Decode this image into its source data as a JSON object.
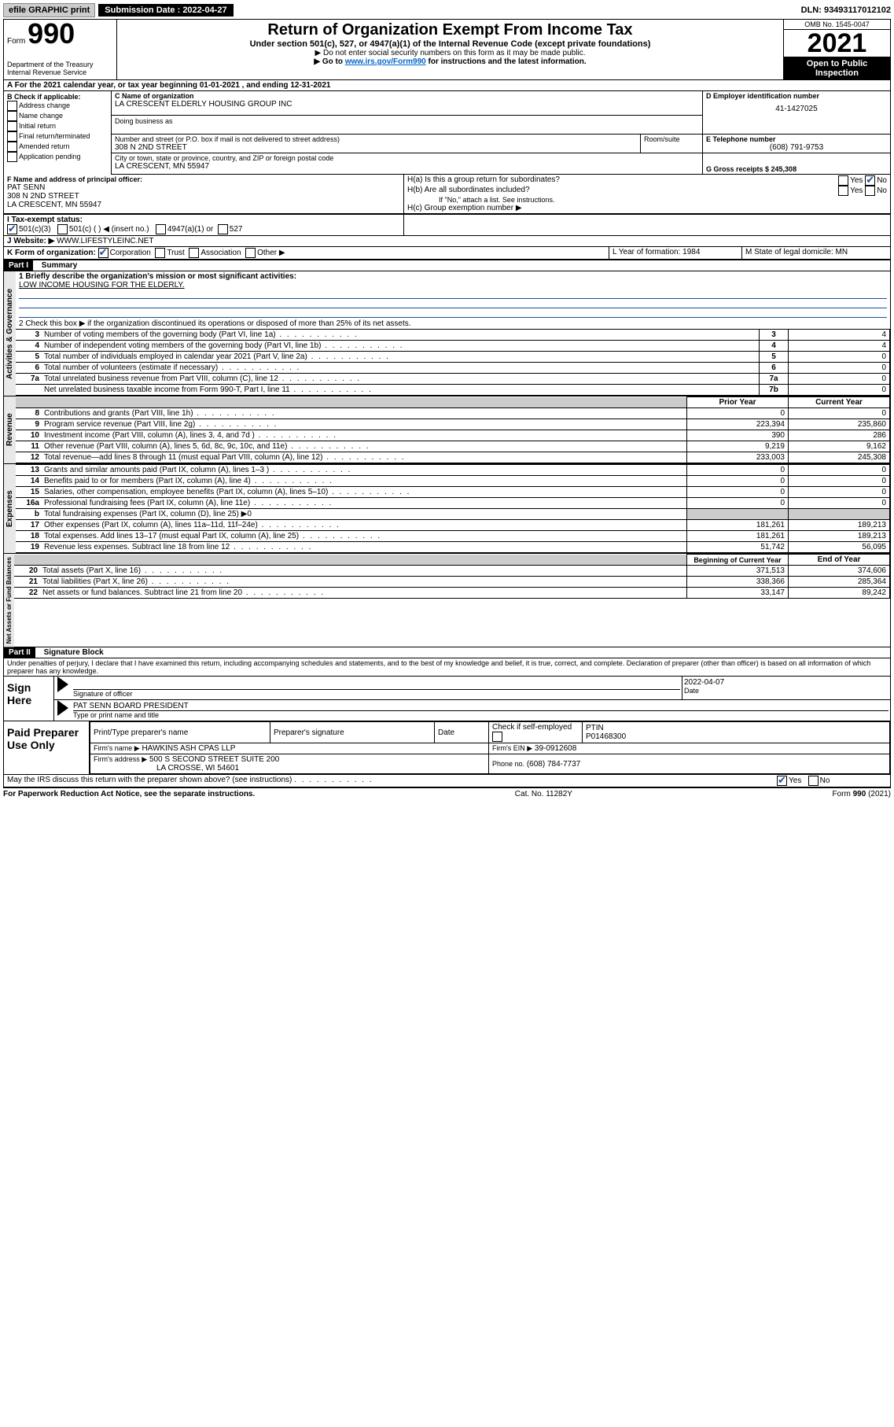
{
  "topbar": {
    "efile": "efile GRAPHIC print",
    "sub_label": "Submission Date : 2022-04-27",
    "dln": "DLN: 93493117012102"
  },
  "header": {
    "form_word": "Form",
    "form_num": "990",
    "dept1": "Department of the Treasury",
    "dept2": "Internal Revenue Service",
    "title": "Return of Organization Exempt From Income Tax",
    "sub": "Under section 501(c), 527, or 4947(a)(1) of the Internal Revenue Code (except private foundations)",
    "note1": "▶ Do not enter social security numbers on this form as it may be made public.",
    "note2a": "▶ Go to ",
    "note2_link": "www.irs.gov/Form990",
    "note2b": " for instructions and the latest information.",
    "omb": "OMB No. 1545-0047",
    "year": "2021",
    "open1": "Open to Public",
    "open2": "Inspection"
  },
  "period": {
    "a_line": "A For the 2021 calendar year, or tax year beginning 01-01-2021   , and ending 12-31-2021"
  },
  "boxB": {
    "label": "B Check if applicable:",
    "opts": [
      "Address change",
      "Name change",
      "Initial return",
      "Final return/terminated",
      "Amended return",
      "Application pending"
    ]
  },
  "boxC": {
    "name_lbl": "C Name of organization",
    "name": "LA CRESCENT ELDERLY HOUSING GROUP INC",
    "dba_lbl": "Doing business as",
    "addr_lbl": "Number and street (or P.O. box if mail is not delivered to street address)",
    "room_lbl": "Room/suite",
    "addr": "308 N 2ND STREET",
    "city_lbl": "City or town, state or province, country, and ZIP or foreign postal code",
    "city": "LA CRESCENT, MN  55947"
  },
  "boxD": {
    "lbl": "D Employer identification number",
    "val": "41-1427025"
  },
  "boxE": {
    "lbl": "E Telephone number",
    "val": "(608) 791-9753"
  },
  "boxG": {
    "lbl": "G Gross receipts $ 245,308"
  },
  "boxF": {
    "lbl": "F Name and address of principal officer:",
    "name": "PAT SENN",
    "addr1": "308 N 2ND STREET",
    "addr2": "LA CRESCENT, MN  55947"
  },
  "boxH": {
    "a": "H(a)  Is this a group return for subordinates?",
    "b": "H(b)  Are all subordinates included?",
    "note": "If \"No,\" attach a list. See instructions.",
    "c": "H(c)  Group exemption number ▶",
    "yes": "Yes",
    "no": "No"
  },
  "taxI": {
    "lbl": "I   Tax-exempt status:",
    "o1": "501(c)(3)",
    "o2": "501(c) (  ) ◀ (insert no.)",
    "o3": "4947(a)(1) or",
    "o4": "527"
  },
  "J": {
    "lbl": "J   Website: ▶",
    "val": "WWW.LIFESTYLEINC.NET"
  },
  "K": {
    "lbl": "K Form of organization:",
    "o1": "Corporation",
    "o2": "Trust",
    "o3": "Association",
    "o4": "Other ▶"
  },
  "L": {
    "lbl": "L Year of formation: 1984"
  },
  "M": {
    "lbl": "M State of legal domicile: MN"
  },
  "part1": {
    "label": "Part I",
    "title": "Summary",
    "q1": "1  Briefly describe the organization's mission or most significant activities:",
    "mission": "LOW INCOME HOUSING FOR THE ELDERLY.",
    "q2": "2   Check this box ▶         if the organization discontinued its operations or disposed of more than 25% of its net assets.",
    "side_act": "Activities & Governance",
    "side_rev": "Revenue",
    "side_exp": "Expenses",
    "side_net": "Net Assets or Fund Balances",
    "rows_ag": [
      {
        "n": "3",
        "t": "Number of voting members of the governing body (Part VI, line 1a)",
        "k": "3",
        "v": "4"
      },
      {
        "n": "4",
        "t": "Number of independent voting members of the governing body (Part VI, line 1b)",
        "k": "4",
        "v": "4"
      },
      {
        "n": "5",
        "t": "Total number of individuals employed in calendar year 2021 (Part V, line 2a)",
        "k": "5",
        "v": "0"
      },
      {
        "n": "6",
        "t": "Total number of volunteers (estimate if necessary)",
        "k": "6",
        "v": "0"
      },
      {
        "n": "7a",
        "t": "Total unrelated business revenue from Part VIII, column (C), line 12",
        "k": "7a",
        "v": "0"
      },
      {
        "n": "",
        "t": "Net unrelated business taxable income from Form 990-T, Part I, line 11",
        "k": "7b",
        "v": "0"
      }
    ],
    "hdr_prior": "Prior Year",
    "hdr_curr": "Current Year",
    "rows_rev": [
      {
        "n": "8",
        "t": "Contributions and grants (Part VIII, line 1h)",
        "p": "0",
        "c": "0"
      },
      {
        "n": "9",
        "t": "Program service revenue (Part VIII, line 2g)",
        "p": "223,394",
        "c": "235,860"
      },
      {
        "n": "10",
        "t": "Investment income (Part VIII, column (A), lines 3, 4, and 7d )",
        "p": "390",
        "c": "286"
      },
      {
        "n": "11",
        "t": "Other revenue (Part VIII, column (A), lines 5, 6d, 8c, 9c, 10c, and 11e)",
        "p": "9,219",
        "c": "9,162"
      },
      {
        "n": "12",
        "t": "Total revenue—add lines 8 through 11 (must equal Part VIII, column (A), line 12)",
        "p": "233,003",
        "c": "245,308"
      }
    ],
    "rows_exp": [
      {
        "n": "13",
        "t": "Grants and similar amounts paid (Part IX, column (A), lines 1–3 )",
        "p": "0",
        "c": "0"
      },
      {
        "n": "14",
        "t": "Benefits paid to or for members (Part IX, column (A), line 4)",
        "p": "0",
        "c": "0"
      },
      {
        "n": "15",
        "t": "Salaries, other compensation, employee benefits (Part IX, column (A), lines 5–10)",
        "p": "0",
        "c": "0"
      },
      {
        "n": "16a",
        "t": "Professional fundraising fees (Part IX, column (A), line 11e)",
        "p": "0",
        "c": "0"
      },
      {
        "n": "b",
        "t": "Total fundraising expenses (Part IX, column (D), line 25) ▶0",
        "p": "",
        "c": "",
        "gray": true
      },
      {
        "n": "17",
        "t": "Other expenses (Part IX, column (A), lines 11a–11d, 11f–24e)",
        "p": "181,261",
        "c": "189,213"
      },
      {
        "n": "18",
        "t": "Total expenses. Add lines 13–17 (must equal Part IX, column (A), line 25)",
        "p": "181,261",
        "c": "189,213"
      },
      {
        "n": "19",
        "t": "Revenue less expenses. Subtract line 18 from line 12",
        "p": "51,742",
        "c": "56,095"
      }
    ],
    "hdr_boy": "Beginning of Current Year",
    "hdr_eoy": "End of Year",
    "rows_net": [
      {
        "n": "20",
        "t": "Total assets (Part X, line 16)",
        "p": "371,513",
        "c": "374,606"
      },
      {
        "n": "21",
        "t": "Total liabilities (Part X, line 26)",
        "p": "338,366",
        "c": "285,364"
      },
      {
        "n": "22",
        "t": "Net assets or fund balances. Subtract line 21 from line 20",
        "p": "33,147",
        "c": "89,242"
      }
    ]
  },
  "part2": {
    "label": "Part II",
    "title": "Signature Block",
    "decl": "Under penalties of perjury, I declare that I have examined this return, including accompanying schedules and statements, and to the best of my knowledge and belief, it is true, correct, and complete. Declaration of preparer (other than officer) is based on all information of which preparer has any knowledge.",
    "sign_here": "Sign Here",
    "sig_officer": "Signature of officer",
    "sig_date": "Date",
    "date_val": "2022-04-07",
    "name_title": "PAT SENN  BOARD PRESIDENT",
    "name_lbl": "Type or print name and title",
    "paid": "Paid Preparer Use Only",
    "prep_name_lbl": "Print/Type preparer's name",
    "prep_sig_lbl": "Preparer's signature",
    "prep_date_lbl": "Date",
    "check_if": "Check         if self-employed",
    "ptin_lbl": "PTIN",
    "ptin": "P01468300",
    "firm_name_lbl": "Firm's name     ▶",
    "firm_name": "HAWKINS ASH CPAS LLP",
    "firm_ein_lbl": "Firm's EIN ▶",
    "firm_ein": "39-0912608",
    "firm_addr_lbl": "Firm's address ▶",
    "firm_addr1": "500 S SECOND STREET SUITE 200",
    "firm_addr2": "LA CROSSE, WI  54601",
    "phone_lbl": "Phone no.",
    "phone": "(608) 784-7737",
    "may_irs": "May the IRS discuss this return with the preparer shown above? (see instructions)",
    "yes": "Yes",
    "no": "No"
  },
  "footer": {
    "left": "For Paperwork Reduction Act Notice, see the separate instructions.",
    "mid": "Cat. No. 11282Y",
    "right": "Form 990 (2021)"
  }
}
